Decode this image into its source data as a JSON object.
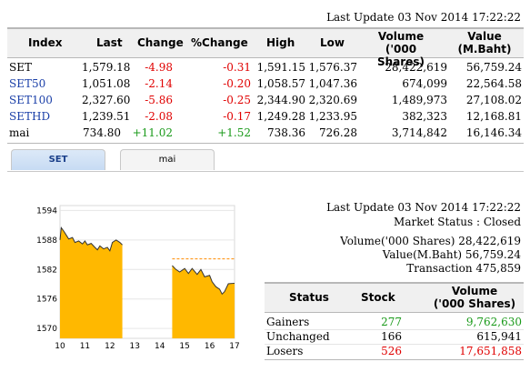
{
  "top": {
    "last_update": "Last Update 03 Nov 2014 17:22:22",
    "headers": [
      "Index",
      "Last",
      "Change",
      "%Change",
      "High",
      "Low",
      "Volume",
      "('000 Shares)",
      "Value",
      "(M.Baht)"
    ],
    "rows": [
      {
        "index": "SET",
        "last": "1,579.18",
        "change": "-4.98",
        "pct": "-0.31",
        "high": "1,591.15",
        "low": "1,576.37",
        "volume": "28,422,619",
        "value": "56,759.24"
      },
      {
        "index": "SET50",
        "last": "1,051.08",
        "change": "-2.14",
        "pct": "-0.20",
        "high": "1,058.57",
        "low": "1,047.36",
        "volume": "674,099",
        "value": "22,564.58"
      },
      {
        "index": "SET100",
        "last": "2,327.60",
        "change": "-5.86",
        "pct": "-0.25",
        "high": "2,344.90",
        "low": "2,320.69",
        "volume": "1,489,973",
        "value": "27,108.02"
      },
      {
        "index": "SETHD",
        "last": "1,239.51",
        "change": "-2.08",
        "pct": "-0.17",
        "high": "1,249.28",
        "low": "1,233.95",
        "volume": "382,323",
        "value": "12,168.81"
      },
      {
        "index": "mai",
        "last": "734.80",
        "change": "+11.02",
        "pct": "+1.52",
        "high": "738.36",
        "low": "726.28",
        "volume": "3,714,842",
        "value": "16,146.34"
      }
    ]
  },
  "tabs": [
    {
      "label": "SET",
      "active": true
    },
    {
      "label": "mai",
      "active": false
    }
  ],
  "chart_data": {
    "type": "area",
    "x_ticks": [
      "10",
      "11",
      "12",
      "13",
      "14",
      "15",
      "16",
      "17"
    ],
    "y_ticks": [
      "1594",
      "1588",
      "1582",
      "1576",
      "1570"
    ],
    "ylim": [
      1568,
      1595
    ],
    "reference_line": 1584.16,
    "colors": {
      "fill": "#ffb800",
      "line": "#333333",
      "reference": "#ff8c00"
    },
    "series": [
      {
        "x": [
          10.0,
          10.05,
          10.15,
          10.25,
          10.35,
          10.5,
          10.6,
          10.75,
          10.9,
          11.0,
          11.1,
          11.25,
          11.4,
          11.5,
          11.6,
          11.75,
          11.9,
          12.0,
          12.1,
          12.25,
          12.4,
          12.5
        ],
        "y": [
          1588.0,
          1590.5,
          1589.8,
          1589.0,
          1588.2,
          1588.5,
          1587.5,
          1587.8,
          1587.2,
          1587.8,
          1587.0,
          1587.3,
          1586.5,
          1586.0,
          1586.8,
          1586.2,
          1586.5,
          1585.8,
          1587.5,
          1588.0,
          1587.5,
          1587.0
        ]
      },
      {
        "x": [
          14.5,
          14.65,
          14.8,
          15.0,
          15.15,
          15.3,
          15.5,
          15.65,
          15.8,
          16.0,
          16.1,
          16.25,
          16.4,
          16.5,
          16.6,
          16.75,
          17.0
        ],
        "y": [
          1582.8,
          1582.0,
          1581.5,
          1582.2,
          1581.2,
          1582.2,
          1581.0,
          1582.0,
          1580.5,
          1580.8,
          1579.5,
          1578.5,
          1578.0,
          1577.0,
          1577.5,
          1579.1,
          1579.2
        ]
      }
    ]
  },
  "market": {
    "last_update": "Last Update 03 Nov 2014 17:22:22",
    "status": "Market Status : Closed",
    "volume": "Volume('000 Shares) 28,422,619",
    "value": "Value(M.Baht) 56,759.24",
    "transaction": "Transaction 475,859"
  },
  "breadth": {
    "headers": [
      "Status",
      "Stock",
      "Volume",
      "('000 Shares)"
    ],
    "rows": [
      {
        "status": "Gainers",
        "stock": "277",
        "volume": "9,762,630",
        "color": "#1a9a1a"
      },
      {
        "status": "Unchanged",
        "stock": "166",
        "volume": "615,941",
        "color": "#000000"
      },
      {
        "status": "Losers",
        "stock": "526",
        "volume": "17,651,858",
        "color": "#e00000"
      }
    ]
  }
}
